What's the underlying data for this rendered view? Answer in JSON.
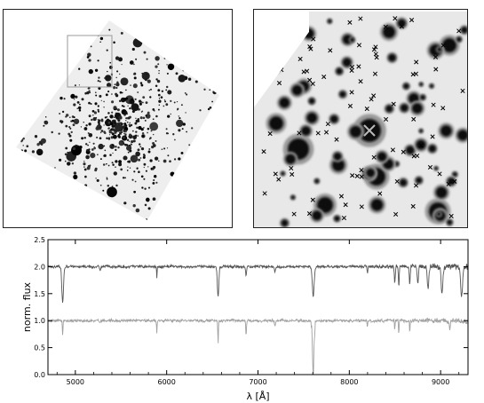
{
  "chart_data": {
    "type": "line",
    "xlabel": "λ [Å]",
    "ylabel": "norm. flux",
    "xlim": [
      4700,
      9300
    ],
    "ylim": [
      0.0,
      2.5
    ],
    "x_ticks": [
      5000,
      6000,
      7000,
      8000,
      9000
    ],
    "y_ticks": [
      0.0,
      0.5,
      1.0,
      1.5,
      2.0,
      2.5
    ],
    "grid": false,
    "series": [
      {
        "offset": 2.0,
        "color": "#555555",
        "noise": 0.02,
        "red_noise": 0.05,
        "lines": [
          {
            "x": 4861,
            "depth": 0.65,
            "width": 9
          },
          {
            "x": 5270,
            "depth": 0.06,
            "width": 6
          },
          {
            "x": 5892,
            "depth": 0.22,
            "width": 3
          },
          {
            "x": 6563,
            "depth": 0.55,
            "width": 8
          },
          {
            "x": 6870,
            "depth": 0.18,
            "width": 5
          },
          {
            "x": 7186,
            "depth": 0.1,
            "width": 6
          },
          {
            "x": 7605,
            "depth": 0.55,
            "width": 10
          },
          {
            "x": 8198,
            "depth": 0.12,
            "width": 4
          },
          {
            "x": 8498,
            "depth": 0.3,
            "width": 5
          },
          {
            "x": 8542,
            "depth": 0.35,
            "width": 5
          },
          {
            "x": 8662,
            "depth": 0.32,
            "width": 5
          },
          {
            "x": 8750,
            "depth": 0.3,
            "width": 7
          },
          {
            "x": 8863,
            "depth": 0.4,
            "width": 8
          },
          {
            "x": 9015,
            "depth": 0.5,
            "width": 9
          },
          {
            "x": 9229,
            "depth": 0.55,
            "width": 11
          }
        ]
      },
      {
        "offset": 1.0,
        "color": "#a0a0a0",
        "noise": 0.02,
        "red_noise": 0.04,
        "lines": [
          {
            "x": 4861,
            "depth": 0.3,
            "width": 3
          },
          {
            "x": 5270,
            "depth": 0.05,
            "width": 5
          },
          {
            "x": 5892,
            "depth": 0.22,
            "width": 3
          },
          {
            "x": 6563,
            "depth": 0.45,
            "width": 3
          },
          {
            "x": 6870,
            "depth": 0.28,
            "width": 4
          },
          {
            "x": 7186,
            "depth": 0.1,
            "width": 5
          },
          {
            "x": 7605,
            "depth": 0.85,
            "width": 8
          },
          {
            "x": 8198,
            "depth": 0.12,
            "width": 3
          },
          {
            "x": 8498,
            "depth": 0.18,
            "width": 3
          },
          {
            "x": 8542,
            "depth": 0.25,
            "width": 3
          },
          {
            "x": 8662,
            "depth": 0.22,
            "width": 3
          },
          {
            "x": 9100,
            "depth": 0.15,
            "width": 5
          }
        ]
      }
    ]
  }
}
